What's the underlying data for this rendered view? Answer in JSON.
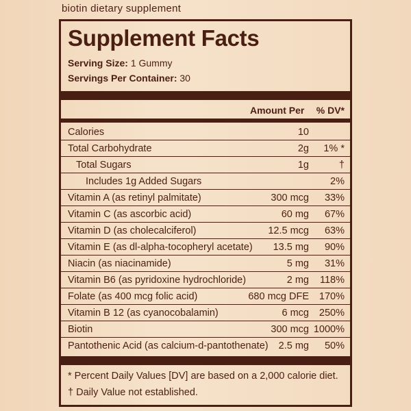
{
  "header_text": "biotin dietary supplement",
  "panel": {
    "title": "Supplement Facts",
    "serving_size_label": "Serving Size:",
    "serving_size_value": "1 Gummy",
    "servings_per_container_label": "Servings Per Container:",
    "servings_per_container_value": "30",
    "col_amount": "Amount Per",
    "col_dv": "% DV*"
  },
  "rows": [
    {
      "name": "Calories",
      "amount": "10",
      "dv": ""
    },
    {
      "name": "Total Carbohydrate",
      "amount": "2g",
      "dv": "1% *"
    },
    {
      "name": "Total Sugars",
      "amount": "1g",
      "dv": "†"
    },
    {
      "name": "Includes 1g Added Sugars",
      "amount": "",
      "dv": "2%"
    },
    {
      "name": "Vitamin A (as retinyl palmitate)",
      "amount": "300 mcg",
      "dv": "33%"
    },
    {
      "name": "Vitamin C (as ascorbic acid)",
      "amount": "60 mg",
      "dv": "67%"
    },
    {
      "name": "Vitamin D (as cholecalciferol)",
      "amount": "12.5 mcg",
      "dv": "63%"
    },
    {
      "name": "Vitamin E (as dl-alpha-tocopheryl acetate)",
      "amount": "13.5 mg",
      "dv": "90%"
    },
    {
      "name": "Niacin (as niacinamide)",
      "amount": "5 mg",
      "dv": "31%"
    },
    {
      "name": "Vitamin B6 (as pyridoxine hydrochloride)",
      "amount": "2 mg",
      "dv": "118%"
    },
    {
      "name": "Folate (as 400 mcg folic acid)",
      "amount": "680 mcg DFE",
      "dv": "170%"
    },
    {
      "name": "Vitamin B 12 (as cyanocobalamin)",
      "amount": "6 mcg",
      "dv": "250%"
    },
    {
      "name": "Biotin",
      "amount": "300 mcg",
      "dv": "1000%"
    },
    {
      "name": "Pantothenic Acid (as calcium-d-pantothenate)",
      "amount": "2.5 mg",
      "dv": "50%"
    }
  ],
  "footnotes": {
    "percent_dv": "* Percent Daily Values [DV] are based on a 2,000 calorie diet.",
    "dagger": "† Daily Value not established."
  },
  "colors": {
    "ink": "#4a1f13",
    "background": "#f4dcc0"
  }
}
